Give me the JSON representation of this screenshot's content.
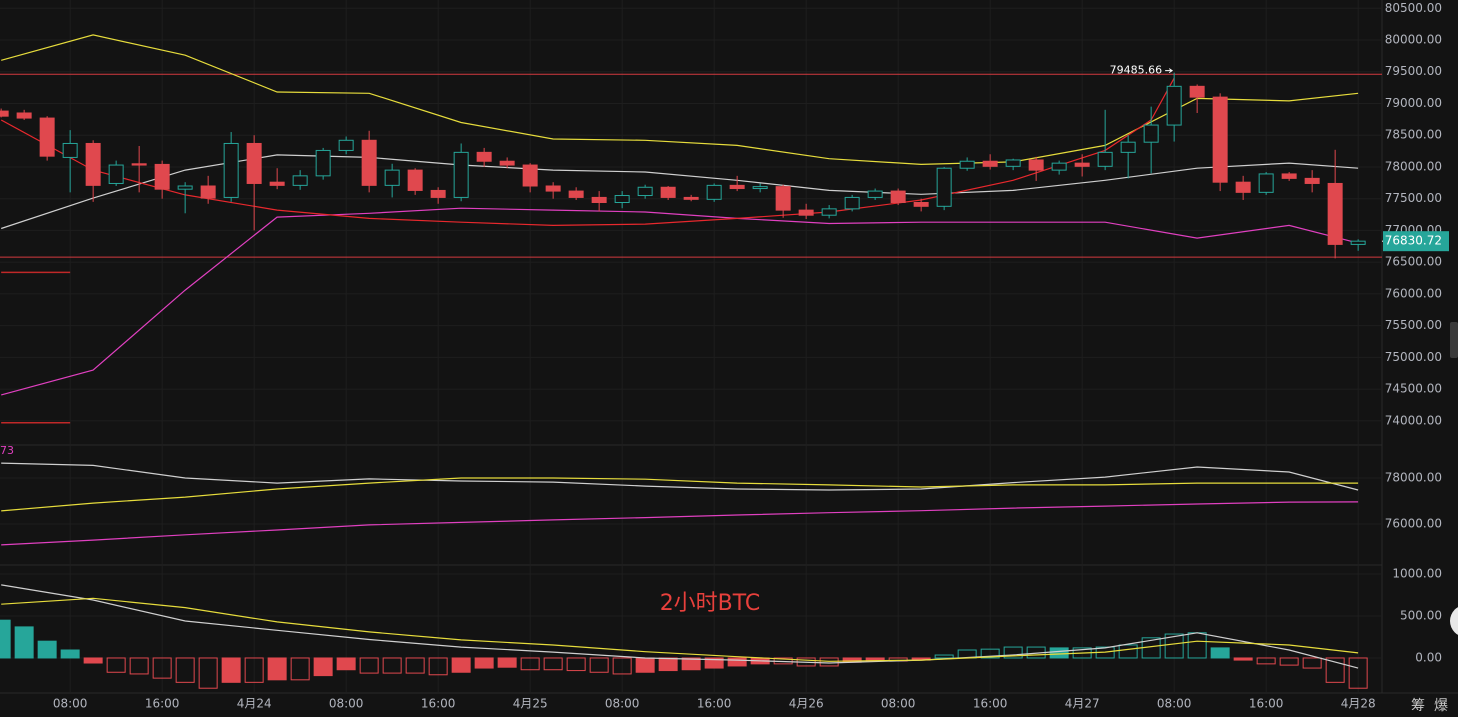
{
  "chart_data": [
    {
      "type": "candlestick",
      "open": [
        78880,
        78850,
        78770,
        78150,
        78370,
        77740,
        78050,
        78040,
        77650,
        77700,
        77520,
        78370,
        77760,
        77710,
        77860,
        78260,
        78420,
        77710,
        77950,
        77630,
        77520,
        78230,
        78090,
        78030,
        77700,
        77620,
        77520,
        77440,
        77550,
        77680,
        77520,
        77490,
        77710,
        77660,
        77690,
        77320,
        77240,
        77340,
        77520,
        77620,
        77440,
        77380,
        77980,
        78090,
        78010,
        78110,
        77950,
        78060,
        78010,
        78230,
        78390,
        78660,
        79270,
        79100,
        77760,
        77600,
        77890,
        77820,
        77740,
        76780
      ],
      "high": [
        78920,
        78900,
        78800,
        78580,
        78420,
        78100,
        78330,
        78100,
        77760,
        77860,
        78550,
        78500,
        77980,
        77950,
        78300,
        78480,
        78570,
        78050,
        77980,
        77680,
        78370,
        78300,
        78150,
        78060,
        77760,
        77680,
        77620,
        77620,
        77720,
        77700,
        77560,
        77740,
        77860,
        77740,
        77720,
        77420,
        77400,
        77560,
        77660,
        77660,
        77500,
        78000,
        78150,
        78200,
        78130,
        78160,
        78100,
        78200,
        78900,
        78500,
        78950,
        79485.66,
        79300,
        79160,
        77860,
        77920,
        77920,
        77950,
        78270,
        76860
      ],
      "low": [
        78780,
        78740,
        78100,
        77600,
        77450,
        77700,
        77600,
        77500,
        77270,
        77420,
        77450,
        77000,
        77650,
        77640,
        77800,
        78200,
        77600,
        77520,
        77560,
        77420,
        77460,
        78000,
        77980,
        77600,
        77500,
        77480,
        77300,
        77350,
        77500,
        77480,
        77460,
        77450,
        77620,
        77600,
        77200,
        77180,
        77190,
        77300,
        77480,
        77400,
        77300,
        77320,
        77940,
        77960,
        77950,
        77780,
        77880,
        77850,
        77950,
        77820,
        77900,
        78400,
        78850,
        77620,
        77480,
        77560,
        77780,
        77600,
        76560,
        76680
      ],
      "close": [
        78800,
        78770,
        78170,
        78370,
        77710,
        78030,
        78030,
        77650,
        77700,
        77510,
        78370,
        77740,
        77710,
        77860,
        78260,
        78420,
        77710,
        77950,
        77630,
        77520,
        78230,
        78090,
        78030,
        77700,
        77620,
        77520,
        77440,
        77550,
        77680,
        77520,
        77490,
        77710,
        77660,
        77690,
        77320,
        77240,
        77340,
        77520,
        77620,
        77440,
        77380,
        77980,
        78090,
        78010,
        78110,
        77950,
        78060,
        78010,
        78230,
        78390,
        78660,
        79270,
        79100,
        77760,
        77600,
        77890,
        77820,
        77740,
        76780,
        76830.72
      ],
      "up_color": "#26a69a",
      "down_color": "#e0484e",
      "series": [
        {
          "name": "upper",
          "color": "#e6dc3c",
          "x": [
            0,
            4,
            8,
            12,
            16,
            20,
            24,
            28,
            32,
            36,
            40,
            44,
            48,
            52,
            56,
            59
          ],
          "values": [
            79680,
            80080,
            79760,
            79180,
            79160,
            78700,
            78440,
            78420,
            78340,
            78130,
            78040,
            78080,
            78340,
            79080,
            79040,
            79160
          ]
        },
        {
          "name": "middle",
          "color": "#cfcfcf",
          "x": [
            0,
            4,
            8,
            12,
            16,
            20,
            24,
            28,
            32,
            36,
            40,
            44,
            48,
            52,
            56,
            59
          ],
          "values": [
            77030,
            77510,
            77950,
            78190,
            78150,
            78030,
            77950,
            77920,
            77790,
            77630,
            77570,
            77630,
            77790,
            77980,
            78060,
            77980
          ]
        },
        {
          "name": "lower",
          "color": "#e040c0",
          "x": [
            0,
            4,
            8,
            12,
            16,
            20,
            24,
            28,
            32,
            36,
            40,
            44,
            48,
            52,
            56,
            59
          ],
          "values": [
            74410,
            74800,
            76060,
            77210,
            77270,
            77350,
            77320,
            77290,
            77190,
            77110,
            77130,
            77130,
            77130,
            76880,
            77080,
            76800
          ]
        },
        {
          "name": "trend",
          "color": "#e8282d",
          "x": [
            0,
            4,
            8,
            12,
            16,
            20,
            24,
            28,
            32,
            36,
            40,
            44,
            48,
            50,
            51
          ],
          "values": [
            78740,
            77950,
            77560,
            77320,
            77190,
            77130,
            77080,
            77100,
            77190,
            77290,
            77480,
            77790,
            78260,
            78740,
            79400
          ]
        }
      ],
      "hlines": [
        {
          "value": 79460,
          "color": "#d33a3f"
        },
        {
          "value": 76580,
          "color": "#d33a3f"
        }
      ],
      "segments": [
        {
          "value": 76340,
          "x": [
            0,
            3
          ],
          "color": "#c02828"
        },
        {
          "value": 73970,
          "x": [
            0,
            3
          ],
          "color": "#c02828"
        }
      ],
      "high_label": "79485.66",
      "last_price_label": "76830.72",
      "annotation": "73",
      "ylim": [
        73620,
        80630
      ],
      "yticks": [
        {
          "value": 80500,
          "label": "80500.00"
        },
        {
          "value": 80000,
          "label": "80000.00"
        },
        {
          "value": 79500,
          "label": "79500.00"
        },
        {
          "value": 79000,
          "label": "79000.00"
        },
        {
          "value": 78500,
          "label": "78500.00"
        },
        {
          "value": 78000,
          "label": "78000.00"
        },
        {
          "value": 77500,
          "label": "77500.00"
        },
        {
          "value": 77000,
          "label": "77000.00"
        },
        {
          "value": 76500,
          "label": "76500.00"
        },
        {
          "value": 76000,
          "label": "76000.00"
        },
        {
          "value": 75500,
          "label": "75500.00"
        },
        {
          "value": 75000,
          "label": "75000.00"
        },
        {
          "value": 74500,
          "label": "74500.00"
        },
        {
          "value": 74000,
          "label": "74000.00"
        }
      ],
      "grid": true
    },
    {
      "type": "line",
      "series": [
        {
          "name": "ma-white",
          "color": "#cfcfcf",
          "x": [
            0,
            4,
            8,
            12,
            16,
            20,
            24,
            28,
            32,
            36,
            40,
            44,
            48,
            52,
            56,
            59
          ],
          "values": [
            78650,
            78550,
            78000,
            77780,
            77960,
            77870,
            77820,
            77650,
            77520,
            77480,
            77520,
            77800,
            78040,
            78480,
            78260,
            77480
          ]
        },
        {
          "name": "ma-yellow",
          "color": "#e6dc3c",
          "x": [
            0,
            4,
            8,
            12,
            16,
            20,
            24,
            28,
            32,
            36,
            40,
            44,
            48,
            52,
            56,
            59
          ],
          "values": [
            76570,
            76910,
            77170,
            77520,
            77780,
            78000,
            78000,
            77950,
            77780,
            77700,
            77610,
            77700,
            77700,
            77780,
            77780,
            77780
          ]
        },
        {
          "name": "ma-magenta",
          "color": "#e040c0",
          "x": [
            0,
            4,
            8,
            12,
            16,
            20,
            24,
            28,
            32,
            36,
            40,
            44,
            48,
            52,
            56,
            59
          ],
          "values": [
            75090,
            75300,
            75530,
            75740,
            75960,
            76070,
            76180,
            76280,
            76390,
            76490,
            76580,
            76690,
            76780,
            76870,
            76950,
            76960
          ]
        }
      ],
      "ylim": [
        74217,
        79435
      ],
      "yticks": [
        {
          "value": 78000,
          "label": "78000.00"
        },
        {
          "value": 76000,
          "label": "76000.00"
        }
      ],
      "grid": true
    },
    {
      "type": "bar",
      "values": [
        450,
        370,
        200,
        95,
        -60,
        -170,
        -190,
        -240,
        -290,
        -360,
        -290,
        -290,
        -260,
        -260,
        -210,
        -140,
        -180,
        -180,
        -180,
        -200,
        -170,
        -120,
        -110,
        -140,
        -140,
        -150,
        -170,
        -190,
        -170,
        -150,
        -140,
        -120,
        -95,
        -70,
        -70,
        -95,
        -95,
        -50,
        -35,
        -35,
        -25,
        35,
        95,
        105,
        130,
        130,
        120,
        120,
        130,
        155,
        240,
        285,
        300,
        120,
        -25,
        -70,
        -85,
        -120,
        -290,
        -360
      ],
      "up_color": "#26a69a",
      "down_color": "#e0484e",
      "series": [
        {
          "name": "dif",
          "color": "#cfcfcf",
          "x": [
            0,
            4,
            8,
            12,
            16,
            20,
            24,
            28,
            32,
            36,
            40,
            44,
            48,
            52,
            56,
            59
          ],
          "values": [
            870,
            690,
            440,
            330,
            220,
            130,
            70,
            0,
            -25,
            -60,
            -25,
            35,
            120,
            300,
            95,
            -120
          ]
        },
        {
          "name": "dea",
          "color": "#e6dc3c",
          "x": [
            0,
            4,
            8,
            12,
            16,
            20,
            24,
            28,
            32,
            36,
            40,
            44,
            48,
            52,
            56,
            59
          ],
          "values": [
            640,
            710,
            600,
            430,
            310,
            215,
            155,
            75,
            15,
            -40,
            -25,
            25,
            70,
            200,
            155,
            60
          ]
        }
      ],
      "title": "2小时BTC",
      "ylim": [
        -417,
        1107
      ],
      "yticks": [
        {
          "value": 1000,
          "label": "1000.00"
        },
        {
          "value": 500,
          "label": "500.00"
        },
        {
          "value": 0,
          "label": "0.00"
        }
      ],
      "xlim": [
        -0.05,
        59.95
      ],
      "xticks": [
        {
          "value": 3,
          "label": "08:00"
        },
        {
          "value": 7,
          "label": "16:00"
        },
        {
          "value": 11,
          "label": "4月24"
        },
        {
          "value": 15,
          "label": "08:00"
        },
        {
          "value": 19,
          "label": "16:00"
        },
        {
          "value": 23,
          "label": "4月25"
        },
        {
          "value": 27,
          "label": "08:00"
        },
        {
          "value": 31,
          "label": "16:00"
        },
        {
          "value": 35,
          "label": "4月26"
        },
        {
          "value": 39,
          "label": "08:00"
        },
        {
          "value": 43,
          "label": "16:00"
        },
        {
          "value": 47,
          "label": "4月27"
        },
        {
          "value": 51,
          "label": "08:00"
        },
        {
          "value": 55,
          "label": "16:00"
        },
        {
          "value": 59,
          "label": "4月28"
        }
      ],
      "grid": true
    }
  ],
  "toolbar": [
    "筹",
    "爆"
  ]
}
